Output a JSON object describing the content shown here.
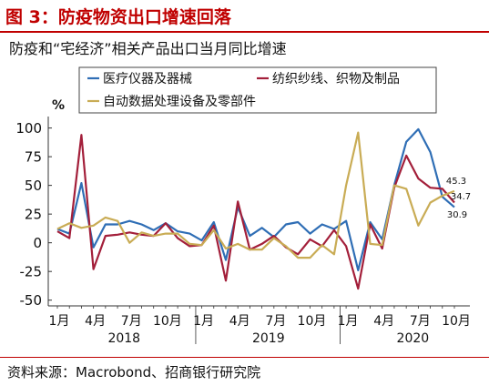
{
  "header": {
    "figure_title": "图 3：防疫物资出口增速回落",
    "subtitle": "防疫和“宅经济”相关产品出口当月同比增速"
  },
  "footer": {
    "source": "资料来源：Macrobond、招商银行研究院"
  },
  "colors": {
    "title": "#c00000",
    "medical": "#2f6eb5",
    "textile": "#a31f3a",
    "appliance": "#c9ac55"
  },
  "chart_data": {
    "type": "line",
    "ylabel": "%",
    "ylim": [
      -55,
      110
    ],
    "yticks": [
      100,
      75,
      50,
      25,
      0,
      -25,
      -50
    ],
    "x": [
      "2018-01",
      "2018-02",
      "2018-03",
      "2018-04",
      "2018-05",
      "2018-06",
      "2018-07",
      "2018-08",
      "2018-09",
      "2018-10",
      "2018-11",
      "2018-12",
      "2019-01",
      "2019-02",
      "2019-03",
      "2019-04",
      "2019-05",
      "2019-06",
      "2019-07",
      "2019-08",
      "2019-09",
      "2019-10",
      "2019-11",
      "2019-12",
      "2020-01",
      "2020-02",
      "2020-03",
      "2020-04",
      "2020-05",
      "2020-06",
      "2020-07",
      "2020-08",
      "2020-09",
      "2020-10"
    ],
    "xtick_labels": [
      {
        "label": "1月",
        "index": 0
      },
      {
        "label": "4月",
        "index": 3
      },
      {
        "label": "7月",
        "index": 6
      },
      {
        "label": "10月",
        "index": 9
      },
      {
        "label": "1月",
        "index": 12
      },
      {
        "label": "4月",
        "index": 15
      },
      {
        "label": "7月",
        "index": 18
      },
      {
        "label": "10月",
        "index": 21
      },
      {
        "label": "1月",
        "index": 24
      },
      {
        "label": "4月",
        "index": 27
      },
      {
        "label": "7月",
        "index": 30
      },
      {
        "label": "10月",
        "index": 33
      }
    ],
    "year_labels": [
      {
        "label": "2018",
        "index": 6
      },
      {
        "label": "2019",
        "index": 18
      },
      {
        "label": "2020",
        "index": 30
      }
    ],
    "series": [
      {
        "name": "医疗仪器及器械",
        "color": "#2f6eb5",
        "values": [
          12,
          8,
          52,
          -4,
          16,
          16,
          19,
          16,
          11,
          17,
          10,
          8,
          2,
          18,
          -15,
          31,
          6,
          13,
          5,
          16,
          18,
          8,
          16,
          12,
          19,
          -24,
          18,
          3,
          50,
          88,
          99,
          79,
          40,
          31
        ]
      },
      {
        "name": "纺织纱线、织物及制品",
        "color": "#a31f3a",
        "values": [
          10,
          4,
          94,
          -23,
          6,
          7,
          9,
          7,
          6,
          17,
          4,
          -3,
          -2,
          15,
          -33,
          36,
          -6,
          -1,
          6,
          -4,
          -10,
          3,
          -3,
          11,
          -3,
          -40,
          16,
          -5,
          48,
          76,
          56,
          48,
          47,
          35
        ]
      },
      {
        "name": "自动数据处理设备及零部件",
        "color": "#c9ac55",
        "values": [
          12,
          17,
          13,
          15,
          22,
          19,
          0,
          9,
          6,
          8,
          8,
          -1,
          -2,
          11,
          -5,
          -1,
          -6,
          -6,
          4,
          -3,
          -13,
          -13,
          -2,
          -10,
          50,
          96,
          -1,
          -2,
          50,
          47,
          15,
          35,
          41,
          45
        ]
      }
    ],
    "annotations": [
      "45.3",
      "34.7",
      "30.9"
    ],
    "legend_position": "top-left"
  }
}
